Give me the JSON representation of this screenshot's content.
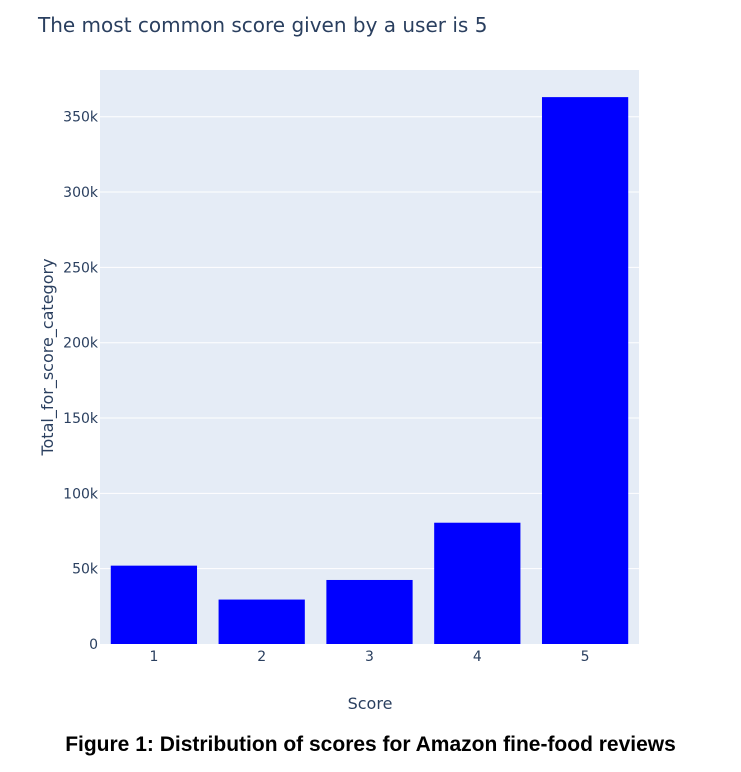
{
  "chart_data": {
    "type": "bar",
    "title": "The most common score given by a user is 5",
    "xlabel": "Score",
    "ylabel": "Total_for_score_category",
    "categories": [
      "1",
      "2",
      "3",
      "4",
      "5"
    ],
    "values": [
      52000,
      29500,
      42500,
      80500,
      363000
    ],
    "ylim": [
      0,
      381000
    ],
    "yticks": [
      0,
      50000,
      100000,
      150000,
      200000,
      250000,
      300000,
      350000
    ],
    "ytick_labels": [
      "0",
      "50k",
      "100k",
      "150k",
      "200k",
      "250k",
      "300k",
      "350k"
    ],
    "bar_color": "#0000ff",
    "plot_background": "#e5ecf6",
    "grid": true,
    "legend": false
  },
  "caption": "Figure 1: Distribution of scores for Amazon fine-food reviews"
}
